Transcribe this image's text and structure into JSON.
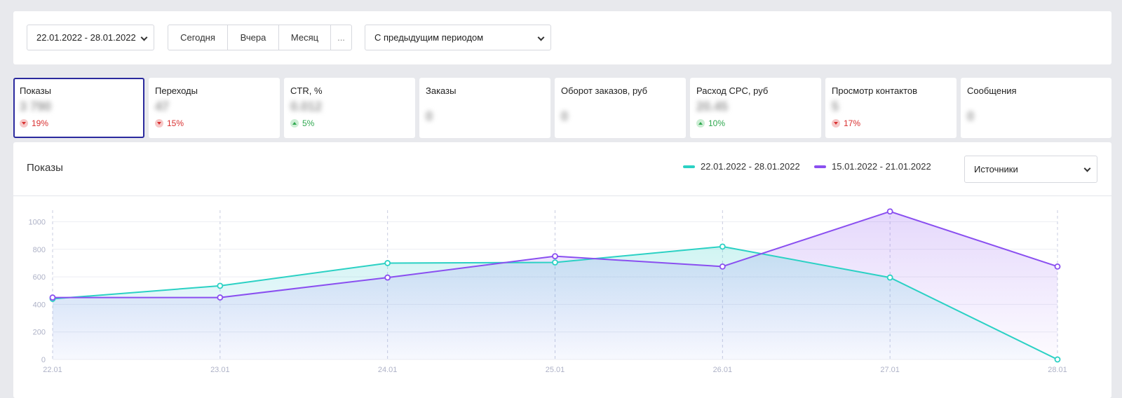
{
  "toolbar": {
    "date_range": "22.01.2022 - 28.01.2022",
    "quick_periods": [
      "Сегодня",
      "Вчера",
      "Месяц",
      "..."
    ],
    "compare": "С предыдущим периодом"
  },
  "metrics": [
    {
      "title": "Показы",
      "value": "3 790",
      "change": "19%",
      "direction": "down",
      "active": true
    },
    {
      "title": "Переходы",
      "value": "47",
      "change": "15%",
      "direction": "down"
    },
    {
      "title": "CTR, %",
      "value": "0.012",
      "change": "5%",
      "direction": "up"
    },
    {
      "title": "Заказы",
      "value": "0",
      "change": "",
      "direction": ""
    },
    {
      "title": "Оборот заказов, руб",
      "value": "0",
      "change": "",
      "direction": ""
    },
    {
      "title": "Расход CPC, руб",
      "value": "20.45",
      "change": "10%",
      "direction": "up"
    },
    {
      "title": "Просмотр контактов",
      "value": "5",
      "change": "17%",
      "direction": "down"
    },
    {
      "title": "Сообщения",
      "value": "0",
      "change": "",
      "direction": ""
    }
  ],
  "chart_panel": {
    "title": "Показы",
    "source_select": "Источники"
  },
  "colors": {
    "current": "#2bd1c4",
    "previous": "#8a4ff0",
    "active_border": "#2b2a9e"
  },
  "chart_data": {
    "type": "area",
    "categories": [
      "22.01",
      "23.01",
      "24.01",
      "25.01",
      "26.01",
      "27.01",
      "28.01"
    ],
    "ylim": [
      0,
      1100
    ],
    "yticks": [
      0,
      200,
      400,
      600,
      800,
      1000
    ],
    "grid": true,
    "legend_position": "top-right",
    "series": [
      {
        "name": "22.01.2022 - 28.01.2022",
        "color": "#2bd1c4",
        "values": [
          440,
          535,
          700,
          705,
          820,
          595,
          0
        ]
      },
      {
        "name": "15.01.2022 - 21.01.2022",
        "color": "#8a4ff0",
        "values": [
          450,
          450,
          595,
          750,
          675,
          1075,
          675
        ]
      }
    ]
  }
}
